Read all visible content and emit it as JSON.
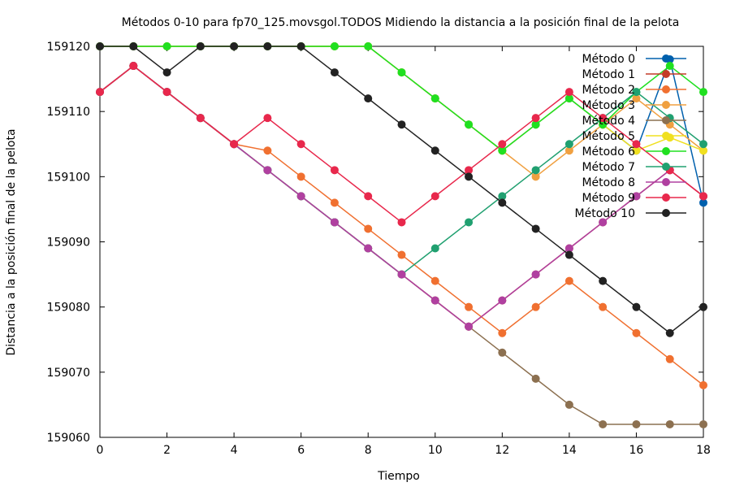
{
  "chart_data": {
    "type": "line",
    "title": "Métodos 0-10 para fp70_125.movsgol.TODOS Midiendo la distancia a la posición final de la pelota",
    "xlabel": "Tiempo",
    "ylabel": "Distancia a la posición final de la pelota",
    "xlim": [
      0,
      18
    ],
    "ylim": [
      159060,
      159120
    ],
    "xticks": [
      0,
      2,
      4,
      6,
      8,
      10,
      12,
      14,
      16,
      18
    ],
    "yticks": [
      159060,
      159070,
      159080,
      159090,
      159100,
      159110,
      159120
    ],
    "grid": false,
    "legend_position": "top-right",
    "x": [
      0,
      1,
      2,
      3,
      4,
      5,
      6,
      7,
      8,
      9,
      10,
      11,
      12,
      13,
      14,
      15,
      16,
      17,
      18
    ],
    "series": [
      {
        "name": "Método 0",
        "color": "#0060ad",
        "values": [
          159120,
          159120,
          159120,
          159120,
          159120,
          159120,
          159120,
          159120,
          159120,
          159116,
          159112,
          159108,
          159104,
          159108,
          159112,
          159108,
          159104,
          159118,
          159096
        ]
      },
      {
        "name": "Método 1",
        "color": "#c43c28",
        "values": [
          159113,
          159117,
          159113,
          159109,
          159105,
          159101,
          159097,
          159093,
          159089,
          159085,
          159081,
          159077,
          159081,
          159085,
          159089,
          159093,
          159097,
          159101,
          159097
        ]
      },
      {
        "name": "Método 2",
        "color": "#f07030",
        "values": [
          159113,
          159117,
          159113,
          159109,
          159105,
          159104,
          159100,
          159096,
          159092,
          159088,
          159084,
          159080,
          159076,
          159080,
          159084,
          159080,
          159076,
          159072,
          159068
        ]
      },
      {
        "name": "Método 3",
        "color": "#f0a040",
        "values": [
          159120,
          159120,
          159120,
          159120,
          159120,
          159120,
          159120,
          159120,
          159120,
          159116,
          159112,
          159108,
          159104,
          159100,
          159104,
          159108,
          159112,
          159108,
          159104
        ]
      },
      {
        "name": "Método 4",
        "color": "#8c7050",
        "values": [
          159113,
          159117,
          159113,
          159109,
          159105,
          159101,
          159097,
          159093,
          159089,
          159085,
          159081,
          159077,
          159073,
          159069,
          159065,
          159062,
          159062,
          159062,
          159062
        ]
      },
      {
        "name": "Método 5",
        "color": "#f0e020",
        "values": [
          159120,
          159120,
          159120,
          159120,
          159120,
          159120,
          159120,
          159120,
          159120,
          159116,
          159112,
          159108,
          159104,
          159108,
          159112,
          159108,
          159104,
          159106,
          159104
        ]
      },
      {
        "name": "Método 6",
        "color": "#20e020",
        "values": [
          159120,
          159120,
          159120,
          159120,
          159120,
          159120,
          159120,
          159120,
          159120,
          159116,
          159112,
          159108,
          159104,
          159108,
          159112,
          159108,
          159113,
          159117,
          159113
        ]
      },
      {
        "name": "Método 7",
        "color": "#20a070",
        "values": [
          159113,
          159117,
          159113,
          159109,
          159105,
          159101,
          159097,
          159093,
          159089,
          159085,
          159089,
          159093,
          159097,
          159101,
          159105,
          159109,
          159113,
          159109,
          159105
        ]
      },
      {
        "name": "Método 8",
        "color": "#b040a0",
        "values": [
          159113,
          159117,
          159113,
          159109,
          159105,
          159101,
          159097,
          159093,
          159089,
          159085,
          159081,
          159077,
          159081,
          159085,
          159089,
          159093,
          159097,
          159101,
          159097
        ]
      },
      {
        "name": "Método 9",
        "color": "#e8284c",
        "values": [
          159113,
          159117,
          159113,
          159109,
          159105,
          159109,
          159105,
          159101,
          159097,
          159093,
          159097,
          159101,
          159105,
          159109,
          159113,
          159109,
          159105,
          159101,
          159097
        ]
      },
      {
        "name": "Método 10",
        "color": "#222222",
        "values": [
          159120,
          159120,
          159116,
          159120,
          159120,
          159120,
          159120,
          159116,
          159112,
          159108,
          159104,
          159100,
          159096,
          159092,
          159088,
          159084,
          159080,
          159076,
          159080
        ]
      }
    ]
  }
}
